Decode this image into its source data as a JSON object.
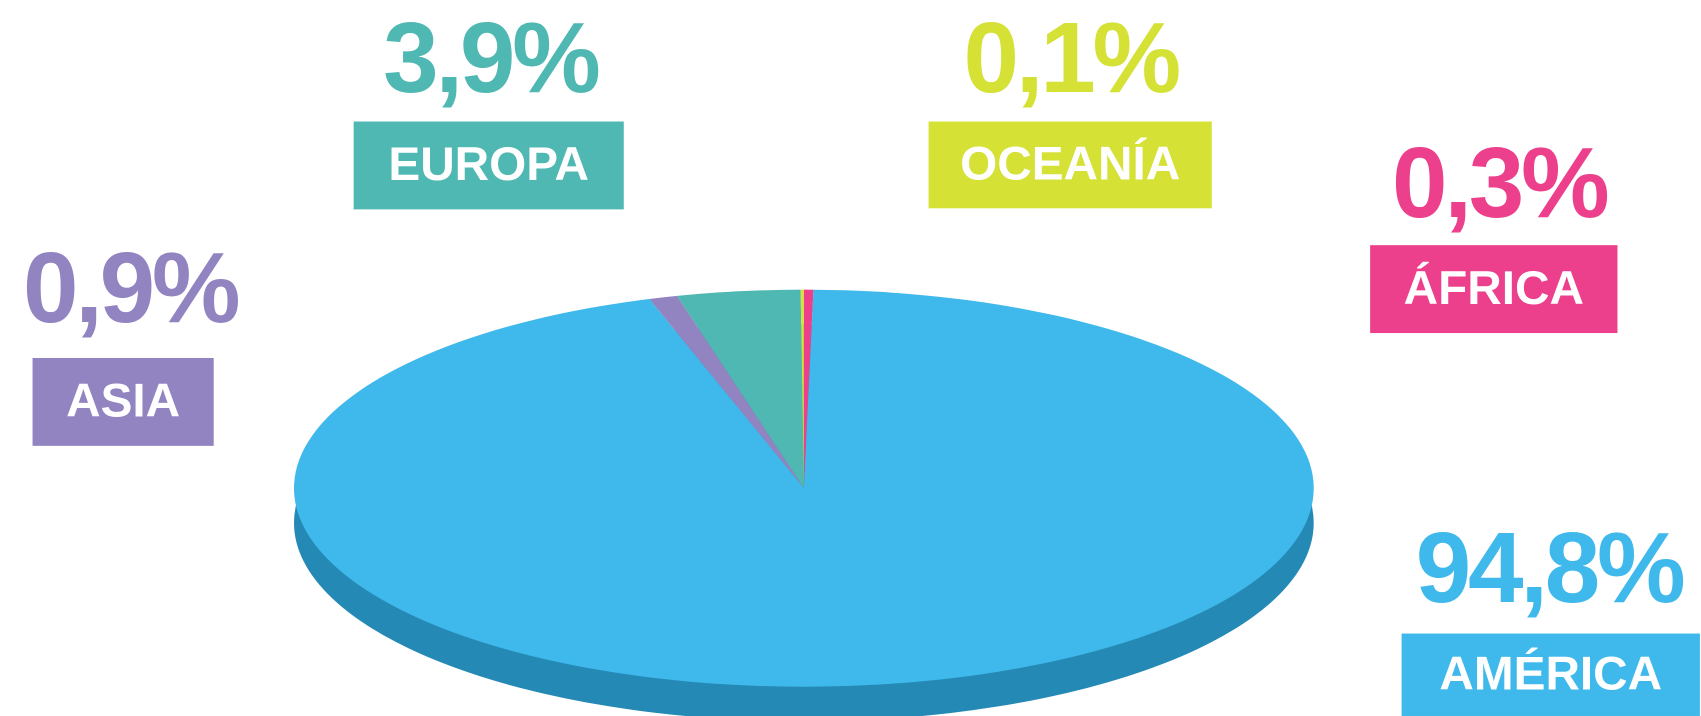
{
  "chart_data": {
    "type": "pie",
    "categories": [
      "ÁFRICA",
      "AMÉRICA",
      "ASIA",
      "EUROPA",
      "OCEANÍA"
    ],
    "values": [
      0.3,
      94.8,
      0.9,
      3.9,
      0.1
    ],
    "value_labels": [
      "0,3%",
      "94,8%",
      "0,9%",
      "3,9%",
      "0,1%"
    ],
    "colors": [
      "#ec3f8c",
      "#3fb9eb",
      "#9284c0",
      "#50b8b2",
      "#d5e135"
    ]
  }
}
